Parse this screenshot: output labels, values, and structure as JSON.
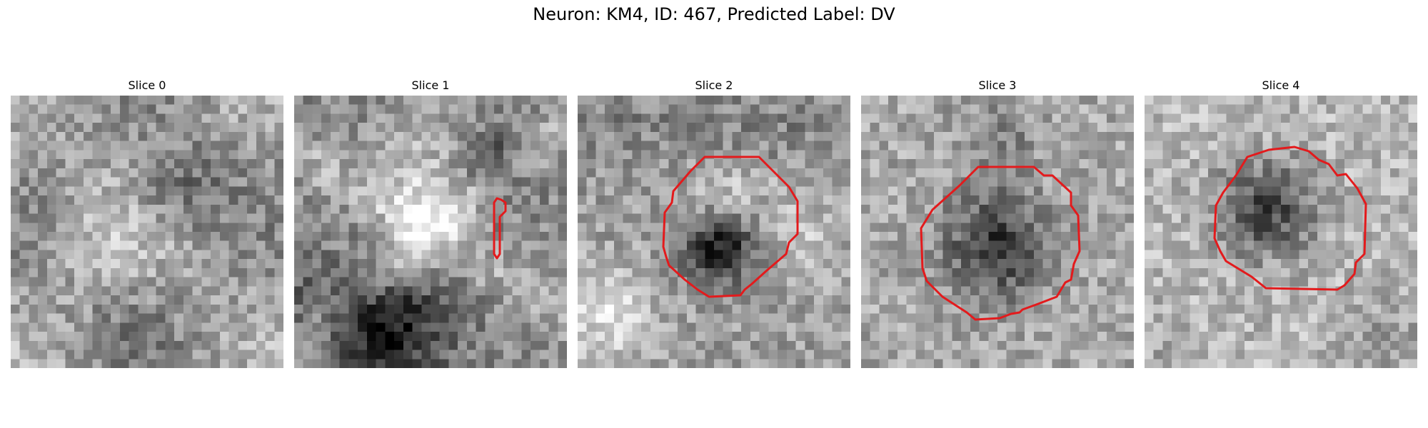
{
  "figure": {
    "title": "Neuron: KM4, ID: 467, Predicted Label: DV"
  },
  "panels": [
    {
      "title": "Slice 0",
      "has_contour": false
    },
    {
      "title": "Slice 1",
      "has_contour": true
    },
    {
      "title": "Slice 2",
      "has_contour": true
    },
    {
      "title": "Slice 3",
      "has_contour": true
    },
    {
      "title": "Slice 4",
      "has_contour": true
    }
  ],
  "colors": {
    "contour": "#e31a1c",
    "colormap": "grayscale"
  }
}
